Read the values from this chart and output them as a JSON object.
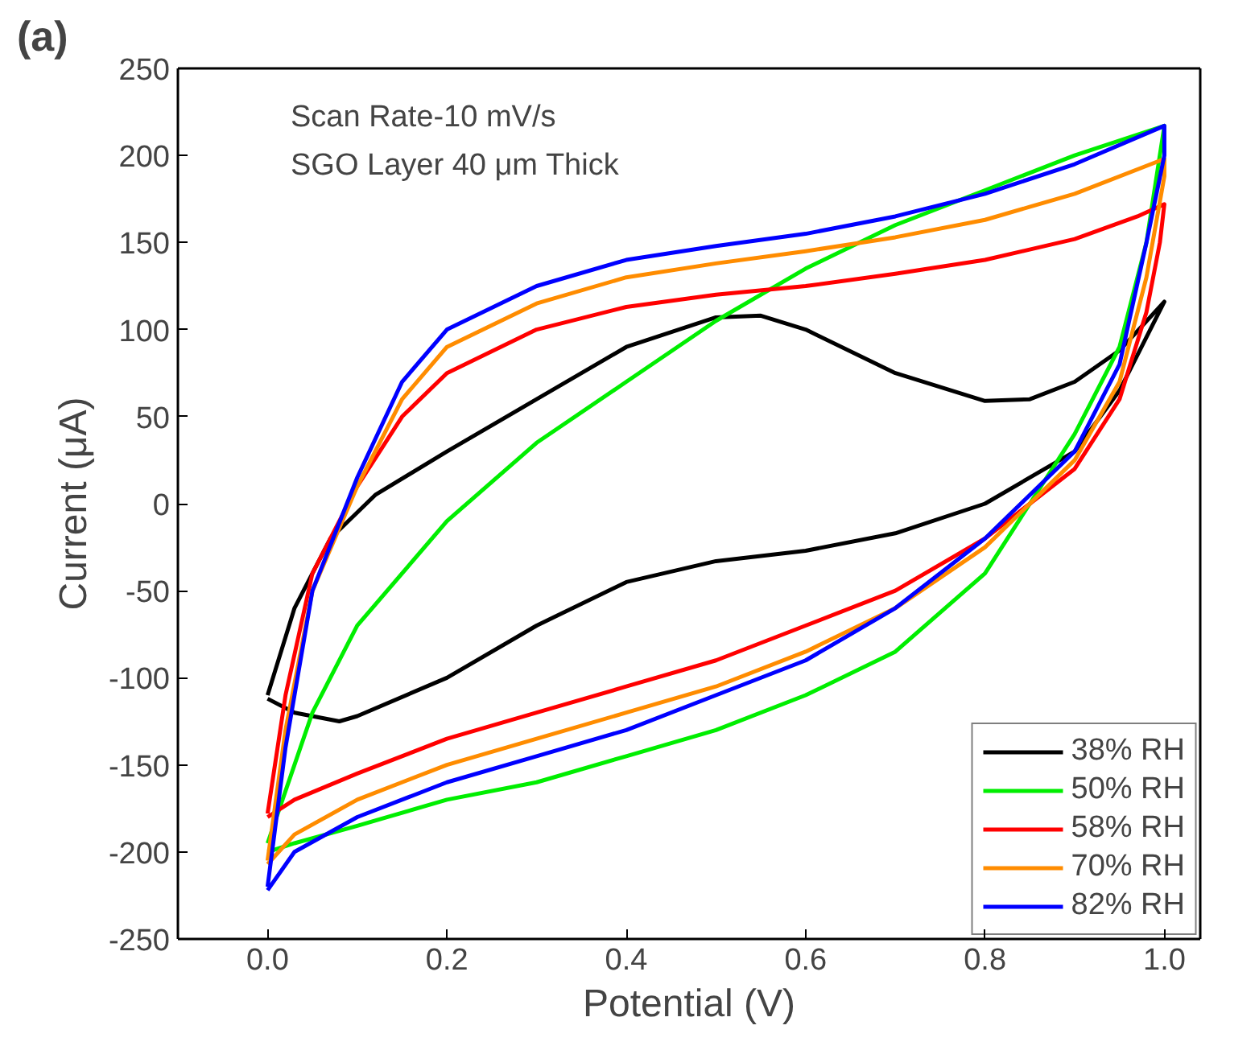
{
  "chart_data": {
    "type": "line",
    "xlabel": "Potential (V)",
    "ylabel": "Current (μA)",
    "annotations": [
      "(a)",
      "Scan Rate-10 mV/s",
      "SGO Layer 40 μm Thick"
    ],
    "xlim": [
      -0.1,
      1.04
    ],
    "ylim": [
      -250,
      250
    ],
    "xticks": [
      {
        "value": 0,
        "label": "0.0"
      },
      {
        "value": 0.2,
        "label": "0.2"
      },
      {
        "value": 0.4,
        "label": "0.4"
      },
      {
        "value": 0.6,
        "label": "0.6"
      },
      {
        "value": 0.8,
        "label": "0.8"
      },
      {
        "value": 1,
        "label": "1.0"
      }
    ],
    "yticks": [
      -250,
      -200,
      -150,
      -100,
      -50,
      0,
      50,
      100,
      150,
      200,
      250
    ],
    "grid": false,
    "legend": "bottom right",
    "marker": "none",
    "line_style": "solid",
    "series": [
      {
        "name": "38% RH",
        "color": "#000000",
        "x": [
          0,
          0.03,
          0.07,
          0.12,
          0.2,
          0.3,
          0.4,
          0.5,
          0.55,
          0.6,
          0.7,
          0.8,
          0.85,
          0.9,
          0.95,
          1.0,
          0.95,
          0.9,
          0.8,
          0.7,
          0.6,
          0.5,
          0.4,
          0.3,
          0.2,
          0.1,
          0.08,
          0.03,
          0
        ],
        "values": [
          -110,
          -60,
          -20,
          5,
          30,
          60,
          90,
          107,
          108,
          100,
          75,
          59,
          60,
          70,
          88,
          116,
          65,
          30,
          0,
          -17,
          -27,
          -33,
          -45,
          -70,
          -100,
          -122,
          -125,
          -120,
          -112
        ]
      },
      {
        "name": "50% RH",
        "color": "#00ee00",
        "x": [
          0,
          0.05,
          0.1,
          0.2,
          0.3,
          0.4,
          0.5,
          0.6,
          0.7,
          0.8,
          0.9,
          1.0,
          0.98,
          0.95,
          0.9,
          0.8,
          0.7,
          0.6,
          0.5,
          0.4,
          0.3,
          0.2,
          0.1,
          0.03,
          0
        ],
        "values": [
          -195,
          -120,
          -70,
          -10,
          35,
          70,
          105,
          135,
          160,
          180,
          200,
          217,
          150,
          90,
          40,
          -40,
          -85,
          -110,
          -130,
          -145,
          -160,
          -170,
          -185,
          -195,
          -200
        ]
      },
      {
        "name": "58% RH",
        "color": "#ff0000",
        "x": [
          0,
          0.02,
          0.05,
          0.1,
          0.15,
          0.2,
          0.3,
          0.4,
          0.5,
          0.6,
          0.7,
          0.8,
          0.9,
          0.97,
          1.0,
          0.995,
          0.98,
          0.95,
          0.9,
          0.8,
          0.7,
          0.6,
          0.5,
          0.4,
          0.3,
          0.2,
          0.1,
          0.03,
          0
        ],
        "values": [
          -178,
          -110,
          -40,
          10,
          50,
          75,
          100,
          113,
          120,
          125,
          132,
          140,
          152,
          165,
          172,
          150,
          110,
          60,
          20,
          -20,
          -50,
          -70,
          -90,
          -105,
          -120,
          -135,
          -155,
          -170,
          -180
        ]
      },
      {
        "name": "70% RH",
        "color": "#ff8c00",
        "x": [
          0,
          0.02,
          0.05,
          0.1,
          0.15,
          0.2,
          0.3,
          0.4,
          0.5,
          0.6,
          0.7,
          0.8,
          0.9,
          1.0,
          1.0,
          0.98,
          0.95,
          0.9,
          0.8,
          0.7,
          0.6,
          0.5,
          0.4,
          0.3,
          0.2,
          0.1,
          0.03,
          0
        ],
        "values": [
          -205,
          -130,
          -50,
          10,
          60,
          90,
          115,
          130,
          138,
          145,
          153,
          163,
          178,
          198,
          188,
          130,
          70,
          25,
          -25,
          -60,
          -85,
          -105,
          -120,
          -135,
          -150,
          -170,
          -190,
          -207
        ]
      },
      {
        "name": "82% RH",
        "color": "#0000ff",
        "x": [
          0,
          0.02,
          0.05,
          0.1,
          0.15,
          0.2,
          0.3,
          0.4,
          0.5,
          0.6,
          0.7,
          0.8,
          0.9,
          1.0,
          1.0,
          0.98,
          0.95,
          0.9,
          0.8,
          0.7,
          0.6,
          0.5,
          0.4,
          0.3,
          0.2,
          0.1,
          0.03,
          0
        ],
        "values": [
          -220,
          -140,
          -50,
          15,
          70,
          100,
          125,
          140,
          148,
          155,
          165,
          178,
          195,
          217,
          200,
          150,
          80,
          30,
          -20,
          -60,
          -90,
          -110,
          -130,
          -145,
          -160,
          -180,
          -200,
          -222
        ]
      }
    ]
  }
}
